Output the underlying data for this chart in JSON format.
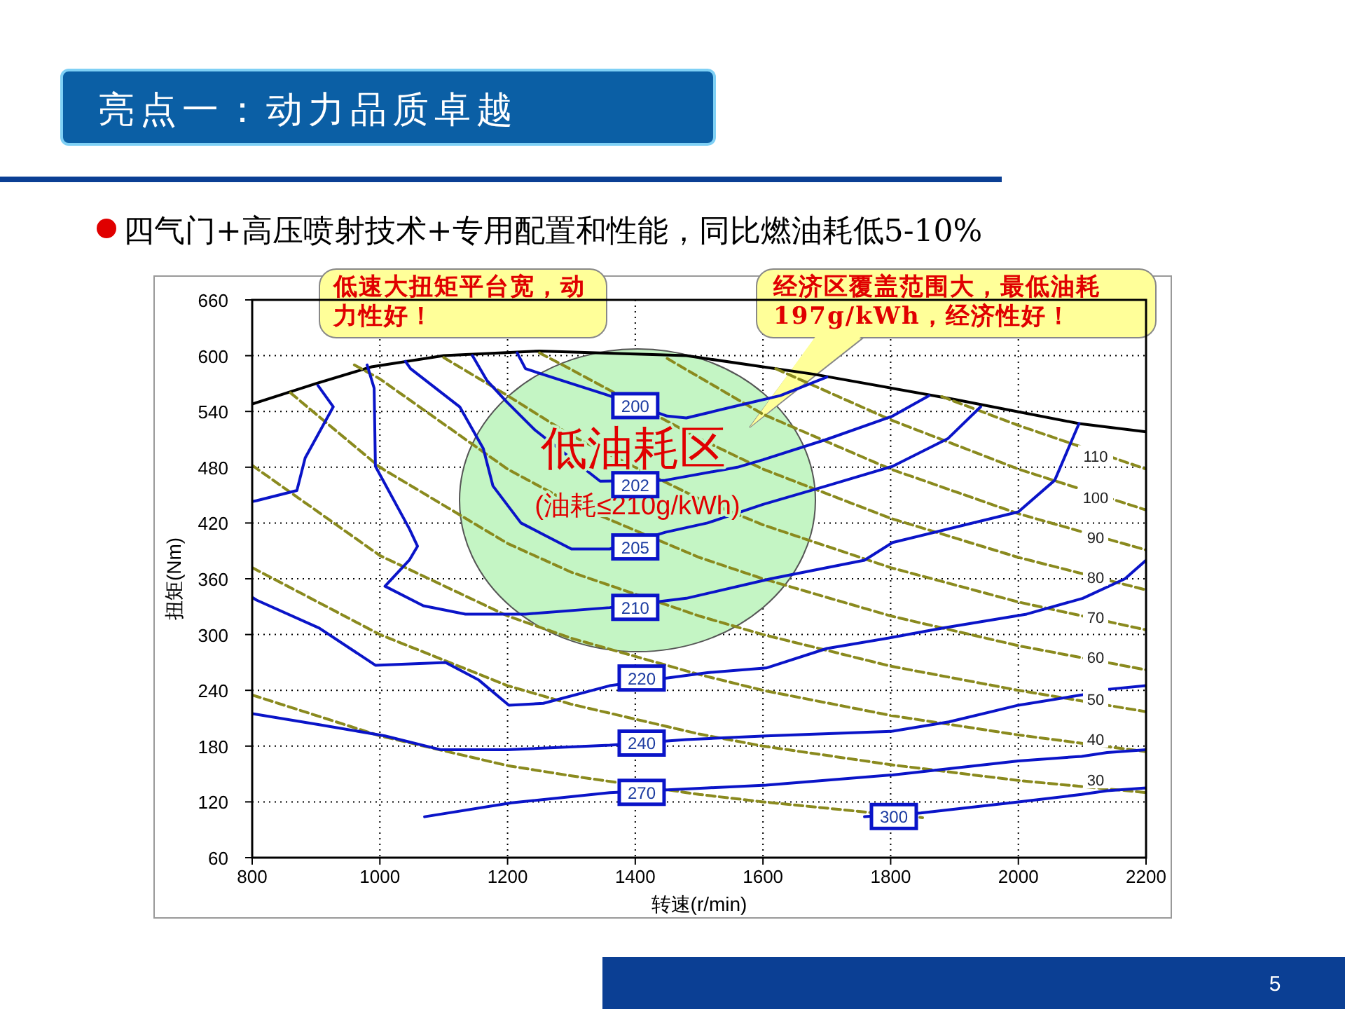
{
  "chart_data": {
    "type": "line",
    "title": "亮点一：动力品质卓越",
    "subtitle": "四气门+高压喷射技术+专用配置和性能，同比燃油耗低5-10%",
    "xlabel": "转速(r/min)",
    "ylabel": "扭矩(Nm)",
    "xlim": [
      800,
      2200
    ],
    "ylim": [
      60,
      660
    ],
    "xticks": [
      800,
      1000,
      1200,
      1400,
      1600,
      1800,
      2000,
      2200
    ],
    "yticks": [
      60,
      120,
      180,
      240,
      300,
      360,
      420,
      480,
      540,
      600,
      660
    ],
    "grid": true,
    "series": [
      {
        "color": "#000000",
        "x": [
          800,
          900,
          987,
          1100,
          1250,
          1480,
          1680,
          1900,
          2095,
          2200
        ],
        "values": [
          548,
          570,
          588,
          600,
          605,
          600,
          580,
          553,
          527,
          518
        ]
      },
      {
        "color": "#8a8a1e",
        "line_style": "dashed",
        "x": [
          800,
          1000,
          1200,
          1300,
          1500,
          1600,
          1850
        ],
        "values": [
          235,
          191,
          159,
          148,
          128,
          120,
          103
        ]
      },
      {
        "name": "30",
        "color": "#8a8a1e",
        "line_style": "dashed",
        "x": [
          800,
          1000,
          1200,
          1300,
          1500,
          1600,
          1800,
          2000,
          2200
        ],
        "values": [
          372,
          300,
          245,
          225,
          193,
          180,
          160,
          143,
          130
        ]
      },
      {
        "name": "40",
        "color": "#8a8a1e",
        "line_style": "dashed",
        "x": [
          800,
          1000,
          1200,
          1300,
          1500,
          1600,
          1800,
          2000,
          2200
        ],
        "values": [
          482,
          385,
          320,
          296,
          257,
          240,
          213,
          192,
          174
        ]
      },
      {
        "name": "50",
        "color": "#8a8a1e",
        "line_style": "dashed",
        "x": [
          860,
          1000,
          1200,
          1300,
          1500,
          1600,
          1800,
          2000,
          2200
        ],
        "values": [
          560,
          480,
          398,
          367,
          320,
          300,
          266,
          240,
          217
        ]
      },
      {
        "name": "60",
        "color": "#8a8a1e",
        "line_style": "dashed",
        "x": [
          960,
          1000,
          1200,
          1300,
          1500,
          1600,
          1800,
          2000,
          2200
        ],
        "values": [
          590,
          575,
          478,
          441,
          383,
          360,
          320,
          288,
          262
        ]
      },
      {
        "name": "70",
        "color": "#8a8a1e",
        "line_style": "dashed",
        "x": [
          1100,
          1200,
          1300,
          1500,
          1600,
          1800,
          2000,
          2200
        ],
        "values": [
          598,
          557,
          514,
          446,
          418,
          372,
          335,
          305
        ]
      },
      {
        "name": "80",
        "color": "#8a8a1e",
        "line_style": "dashed",
        "x": [
          1250,
          1300,
          1500,
          1600,
          1800,
          2000,
          2200
        ],
        "values": [
          603,
          585,
          511,
          478,
          425,
          383,
          348
        ]
      },
      {
        "name": "90",
        "color": "#8a8a1e",
        "line_style": "dashed",
        "x": [
          1450,
          1600,
          1800,
          2000,
          2200
        ],
        "values": [
          597,
          537,
          478,
          430,
          391
        ]
      },
      {
        "name": "100",
        "color": "#8a8a1e",
        "line_style": "dashed",
        "x": [
          1620,
          1800,
          2000,
          2200
        ],
        "values": [
          586,
          531,
          478,
          434
        ]
      },
      {
        "name": "110",
        "color": "#8a8a1e",
        "line_style": "dashed",
        "x": [
          1880,
          2000,
          2200
        ],
        "values": [
          556,
          525,
          478
        ]
      },
      {
        "color": "#0a14c8",
        "x": [
          903,
          927,
          883,
          870,
          807,
          800
        ],
        "values": [
          568,
          545,
          490,
          455,
          444,
          443
        ]
      },
      {
        "color": "#0a14c8",
        "x": [
          1215,
          1228,
          1300,
          1355,
          1450,
          1480,
          1553,
          1627,
          1700
        ],
        "values": [
          603,
          586,
          570,
          558,
          535,
          533,
          545,
          557,
          577
        ]
      },
      {
        "color": "#0a14c8",
        "x": [
          1145,
          1168,
          1199,
          1243,
          1345,
          1447,
          1560,
          1600,
          1700,
          1803,
          1860
        ],
        "values": [
          600,
          573,
          550,
          520,
          465,
          466,
          480,
          488,
          510,
          535,
          557
        ]
      },
      {
        "color": "#0a14c8",
        "x": [
          1040,
          1048,
          1125,
          1162,
          1177,
          1221,
          1300,
          1360,
          1447,
          1513,
          1600,
          1700,
          1803,
          1890,
          1941
        ],
        "values": [
          594,
          586,
          545,
          500,
          460,
          420,
          392,
          392,
          410,
          420,
          440,
          460,
          481,
          511,
          545
        ]
      },
      {
        "color": "#0a14c8",
        "x": [
          980,
          991,
          993,
          1046,
          1059,
          1046,
          1008,
          1068,
          1134,
          1228,
          1360,
          1480,
          1612,
          1759,
          1803,
          2000,
          2057,
          2095
        ],
        "values": [
          590,
          565,
          481,
          414,
          395,
          380,
          352,
          331,
          322,
          322,
          329,
          339,
          360,
          380,
          399,
          432,
          466,
          527
        ]
      },
      {
        "color": "#0a14c8",
        "x": [
          800,
          807,
          905,
          993,
          1103,
          1155,
          1202,
          1256,
          1360,
          1513,
          1605,
          1700,
          1803,
          1882,
          2013,
          2101,
          2167,
          2200
        ],
        "values": [
          340,
          337,
          307,
          267,
          270,
          251,
          224,
          226,
          245,
          259,
          264,
          285,
          297,
          307,
          322,
          339,
          360,
          380
        ]
      },
      {
        "color": "#0a14c8",
        "x": [
          800,
          905,
          1008,
          1096,
          1199,
          1360,
          1480,
          1605,
          1803,
          1891,
          2000,
          2099,
          2139,
          2200
        ],
        "values": [
          215,
          203,
          191,
          176,
          176,
          181,
          187,
          191,
          196,
          206,
          224,
          235,
          241,
          245
        ]
      },
      {
        "color": "#0a14c8",
        "x": [
          1070,
          1206,
          1360,
          1513,
          1605,
          1803,
          2000,
          2099,
          2139,
          2200
        ],
        "values": [
          104,
          119,
          130,
          135,
          138,
          149,
          164,
          169,
          173,
          176
        ]
      },
      {
        "color": "#0a14c8",
        "x": [
          1759,
          1847,
          2000,
          2099,
          2139,
          2200
        ],
        "values": [
          104,
          108,
          120,
          128,
          132,
          135
        ]
      }
    ],
    "annotations": [
      "低速大扭矩平台宽，动力性好！",
      "经济区覆盖范围大，最低油耗197g/kWh，经济性好！",
      "低油耗区",
      "(油耗≤210g/kWh)",
      "5",
      {
        "text": "200",
        "x": 1400,
        "y": 547
      },
      {
        "text": "202",
        "x": 1400,
        "y": 462
      },
      {
        "text": "205",
        "x": 1400,
        "y": 395
      },
      {
        "text": "210",
        "x": 1400,
        "y": 330
      },
      {
        "text": "220",
        "x": 1410,
        "y": 254
      },
      {
        "text": "240",
        "x": 1410,
        "y": 184
      },
      {
        "text": "270",
        "x": 1410,
        "y": 131
      },
      {
        "text": "300",
        "x": 1805,
        "y": 105
      }
    ]
  }
}
